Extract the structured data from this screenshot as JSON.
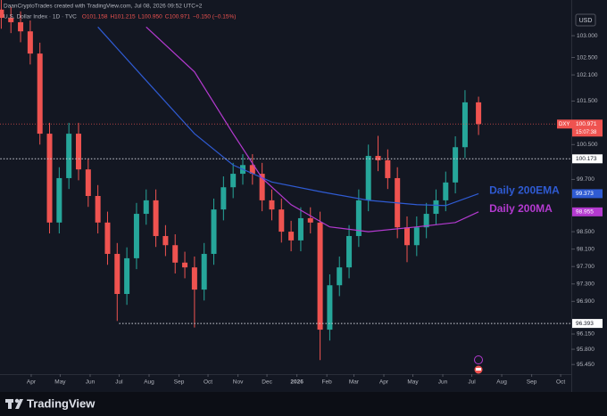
{
  "header": {
    "attribution": "DaanCryptoTrades created with TradingView.com, Jul 08, 2026 09:52 UTC+2",
    "symbol": "U.S. Dollar Index · 1D · TVC",
    "ohlc": [
      "O101.158",
      "H101.215",
      "L100.950",
      "C100.971",
      "−0.150 (−0.15%)"
    ],
    "currency": "USD",
    "brand": "TradingView"
  },
  "chart_data": {
    "type": "candlestick",
    "up_color": "#26a69a",
    "down_color": "#ef5350",
    "grid": false,
    "x": [
      0,
      10,
      20,
      30,
      40,
      50,
      60,
      70,
      80,
      90,
      100,
      110,
      120,
      130,
      140,
      150,
      160,
      170,
      180,
      190,
      200,
      210,
      220,
      230,
      240,
      250,
      260,
      270,
      280,
      290,
      300,
      310,
      320,
      330,
      340,
      350,
      360,
      370,
      380,
      390,
      400,
      410,
      420,
      430,
      440,
      450,
      460,
      470,
      480,
      494
    ],
    "open": [
      103.6,
      103.41,
      103.31,
      103.1,
      102.59,
      100.75,
      98.71,
      99.73,
      100.75,
      99.93,
      99.32,
      98.71,
      97.99,
      97.07,
      97.89,
      98.91,
      99.22,
      98.4,
      98.19,
      97.79,
      97.68,
      97.17,
      97.99,
      99.01,
      99.52,
      99.83,
      100.03,
      99.83,
      99.22,
      99.01,
      98.5,
      98.3,
      98.81,
      98.71,
      96.25,
      97.27,
      97.68,
      98.4,
      99.22,
      100.24,
      100.14,
      99.73,
      98.6,
      98.19,
      98.6,
      98.91,
      99.22,
      99.63,
      100.44,
      101.47
    ],
    "high": [
      104.0,
      103.66,
      103.56,
      103.35,
      102.84,
      101.0,
      99.98,
      101.0,
      101.0,
      100.18,
      99.57,
      98.96,
      98.24,
      98.14,
      99.16,
      99.47,
      99.47,
      98.65,
      98.44,
      98.04,
      97.93,
      98.24,
      99.26,
      99.77,
      100.08,
      100.28,
      100.28,
      100.08,
      99.47,
      99.26,
      98.75,
      99.06,
      99.06,
      98.96,
      97.52,
      97.93,
      98.65,
      99.47,
      100.5,
      100.7,
      100.39,
      99.98,
      98.85,
      98.85,
      99.16,
      99.47,
      99.88,
      100.69,
      101.75,
      101.6
    ],
    "low": [
      103.16,
      103.06,
      102.85,
      102.34,
      100.5,
      98.46,
      98.46,
      99.48,
      99.68,
      99.07,
      98.46,
      97.74,
      96.45,
      96.82,
      97.64,
      98.66,
      98.15,
      97.94,
      97.54,
      97.43,
      96.3,
      96.92,
      97.74,
      98.76,
      99.27,
      99.58,
      99.58,
      98.97,
      98.76,
      98.25,
      98.05,
      98.05,
      98.46,
      95.55,
      96.0,
      97.02,
      97.43,
      98.15,
      98.97,
      99.89,
      99.48,
      98.35,
      97.8,
      97.94,
      98.35,
      98.66,
      98.97,
      99.38,
      100.19,
      100.72
    ],
    "close": [
      103.41,
      103.31,
      103.1,
      102.59,
      100.75,
      98.71,
      99.73,
      100.75,
      99.93,
      99.32,
      98.71,
      97.99,
      97.07,
      97.89,
      98.91,
      99.22,
      98.4,
      98.19,
      97.79,
      97.68,
      97.17,
      97.99,
      99.01,
      99.52,
      99.83,
      100.03,
      99.83,
      99.22,
      99.01,
      98.5,
      98.3,
      98.81,
      98.71,
      96.25,
      97.27,
      97.68,
      98.4,
      99.22,
      100.24,
      100.14,
      99.73,
      98.6,
      98.19,
      98.6,
      98.91,
      99.22,
      99.63,
      100.44,
      101.47,
      100.971
    ],
    "series": [
      {
        "name": "Daily 200EMA",
        "color": "#2f5bd3",
        "x": [
          100,
          150,
          200,
          240,
          280,
          330,
          380,
          430,
          460,
          494
        ],
        "values": [
          103.2,
          101.97,
          100.75,
          100.03,
          99.64,
          99.42,
          99.22,
          99.12,
          99.1,
          99.373
        ],
        "end_label": "99.373"
      },
      {
        "name": "Daily 200MA",
        "color": "#b43ad0",
        "x": [
          150,
          200,
          240,
          270,
          300,
          340,
          380,
          430,
          470,
          494
        ],
        "values": [
          103.2,
          102.17,
          100.75,
          99.73,
          99.12,
          98.61,
          98.5,
          98.61,
          98.71,
          98.955
        ],
        "end_label": "98.955"
      }
    ],
    "last_price": {
      "value": 100.971,
      "label": "100.971",
      "tag": "DXY",
      "countdown": "15:07:38"
    },
    "levels": [
      {
        "value": 100.173,
        "label": "100.173",
        "from": -1
      },
      {
        "value": 96.393,
        "label": "96.393",
        "from": 122
      }
    ],
    "xlim": [
      -1.3,
      590
    ],
    "ylim": [
      94.82,
      103.82
    ],
    "xticks": [
      {
        "value": 31,
        "label": "Apr"
      },
      {
        "value": 61,
        "label": "May"
      },
      {
        "value": 92,
        "label": "Jun"
      },
      {
        "value": 122,
        "label": "Jul"
      },
      {
        "value": 153,
        "label": "Aug"
      },
      {
        "value": 184,
        "label": "Sep"
      },
      {
        "value": 214,
        "label": "Oct"
      },
      {
        "value": 245,
        "label": "Nov"
      },
      {
        "value": 275,
        "label": "Dec"
      },
      {
        "value": 306,
        "label": "2026"
      },
      {
        "value": 337,
        "label": "Feb"
      },
      {
        "value": 365,
        "label": "Mar"
      },
      {
        "value": 396,
        "label": "Apr"
      },
      {
        "value": 426,
        "label": "May"
      },
      {
        "value": 457,
        "label": "Jun"
      },
      {
        "value": 487,
        "label": "Jul"
      },
      {
        "value": 518,
        "label": "Aug"
      },
      {
        "value": 549,
        "label": "Sep"
      },
      {
        "value": 579,
        "label": "Oct"
      }
    ],
    "yticks": [
      {
        "value": 103,
        "label": "103.000"
      },
      {
        "value": 102.5,
        "label": "102.500"
      },
      {
        "value": 102.1,
        "label": "102.100"
      },
      {
        "value": 101.5,
        "label": "101.500"
      },
      {
        "value": 100.5,
        "label": "100.500"
      },
      {
        "value": 99.7,
        "label": "99.700"
      },
      {
        "value": 98.5,
        "label": "98.500"
      },
      {
        "value": 98.1,
        "label": "98.100"
      },
      {
        "value": 97.7,
        "label": "97.700"
      },
      {
        "value": 97.3,
        "label": "97.300"
      },
      {
        "value": 96.9,
        "label": "96.900"
      },
      {
        "value": 96.15,
        "label": "96.150"
      },
      {
        "value": 95.8,
        "label": "95.800"
      },
      {
        "value": 95.45,
        "label": "95.450"
      }
    ]
  }
}
